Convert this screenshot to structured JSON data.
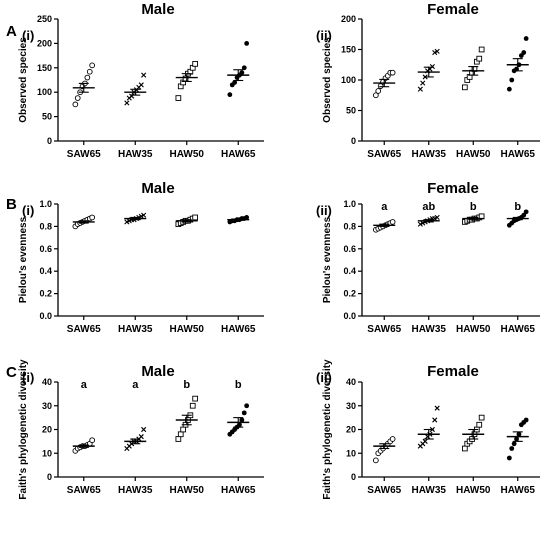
{
  "panel_letters": {
    "A": "A",
    "B": "B",
    "C": "C"
  },
  "chart_data": [
    {
      "type": "scatter",
      "panel": "A",
      "roman": "(i)",
      "title": "Male",
      "ylabel": "Observed species",
      "ylim": [
        0,
        250
      ],
      "yticks": [
        0,
        50,
        100,
        150,
        200,
        250
      ],
      "categories": [
        "SAW65",
        "HAW35",
        "HAW50",
        "HAW65"
      ],
      "markers": [
        "circle",
        "cross",
        "square",
        "dot"
      ],
      "points": [
        [
          75,
          88,
          100,
          112,
          118,
          130,
          142,
          155
        ],
        [
          78,
          88,
          92,
          100,
          105,
          110,
          115,
          135
        ],
        [
          88,
          112,
          120,
          128,
          138,
          142,
          150,
          158
        ],
        [
          95,
          115,
          120,
          130,
          135,
          140,
          150,
          200
        ]
      ],
      "means": [
        109,
        100,
        130,
        135
      ],
      "sem": [
        9,
        6,
        8,
        11
      ],
      "labels": []
    },
    {
      "type": "scatter",
      "panel": "A",
      "roman": "(ii)",
      "title": "Female",
      "ylabel": "Observed species",
      "ylim": [
        0,
        200
      ],
      "yticks": [
        0,
        50,
        100,
        150,
        200
      ],
      "categories": [
        "SAW65",
        "HAW35",
        "HAW50",
        "HAW65"
      ],
      "markers": [
        "circle",
        "cross",
        "square",
        "dot"
      ],
      "points": [
        [
          75,
          82,
          90,
          97,
          103,
          107,
          112,
          112
        ],
        [
          85,
          95,
          105,
          115,
          118,
          122,
          145,
          147
        ],
        [
          88,
          100,
          105,
          112,
          118,
          130,
          135,
          150
        ],
        [
          85,
          100,
          115,
          118,
          125,
          140,
          145,
          168
        ]
      ],
      "means": [
        95,
        113,
        115,
        125
      ],
      "sem": [
        6,
        8,
        7,
        10
      ],
      "labels": []
    },
    {
      "type": "scatter",
      "panel": "B",
      "roman": "(i)",
      "title": "Male",
      "ylabel": "Pielou's evenness",
      "ylim": [
        0,
        1.0
      ],
      "yticks": [
        0.0,
        0.2,
        0.4,
        0.6,
        0.8,
        1.0
      ],
      "categories": [
        "SAW65",
        "HAW35",
        "HAW50",
        "HAW65"
      ],
      "markers": [
        "circle",
        "cross",
        "square",
        "dot"
      ],
      "points": [
        [
          0.8,
          0.82,
          0.83,
          0.84,
          0.85,
          0.86,
          0.87,
          0.88
        ],
        [
          0.84,
          0.85,
          0.86,
          0.86,
          0.87,
          0.88,
          0.89,
          0.9
        ],
        [
          0.82,
          0.83,
          0.84,
          0.85,
          0.85,
          0.86,
          0.87,
          0.88
        ],
        [
          0.84,
          0.85,
          0.85,
          0.86,
          0.86,
          0.87,
          0.87,
          0.88
        ]
      ],
      "means": [
        0.84,
        0.87,
        0.85,
        0.86
      ],
      "sem": [
        0.01,
        0.01,
        0.01,
        0.005
      ],
      "labels": []
    },
    {
      "type": "scatter",
      "panel": "B",
      "roman": "(ii)",
      "title": "Female",
      "ylabel": "Pielou's evenness",
      "ylim": [
        0,
        1.0
      ],
      "yticks": [
        0.0,
        0.2,
        0.4,
        0.6,
        0.8,
        1.0
      ],
      "categories": [
        "SAW65",
        "HAW35",
        "HAW50",
        "HAW65"
      ],
      "markers": [
        "circle",
        "cross",
        "square",
        "dot"
      ],
      "points": [
        [
          0.77,
          0.78,
          0.79,
          0.8,
          0.81,
          0.82,
          0.83,
          0.84
        ],
        [
          0.82,
          0.83,
          0.84,
          0.85,
          0.86,
          0.87,
          0.87,
          0.88
        ],
        [
          0.84,
          0.85,
          0.86,
          0.86,
          0.87,
          0.87,
          0.88,
          0.89
        ],
        [
          0.81,
          0.83,
          0.85,
          0.86,
          0.87,
          0.88,
          0.9,
          0.93
        ]
      ],
      "means": [
        0.81,
        0.85,
        0.87,
        0.87
      ],
      "sem": [
        0.01,
        0.01,
        0.01,
        0.01
      ],
      "labels": [
        "a",
        "ab",
        "b",
        "b"
      ]
    },
    {
      "type": "scatter",
      "panel": "C",
      "roman": "(i)",
      "title": "Male",
      "ylabel": "Faith's phylogenetic diversity",
      "ylim": [
        0,
        40
      ],
      "yticks": [
        0,
        10,
        20,
        30,
        40
      ],
      "categories": [
        "SAW65",
        "HAW35",
        "HAW50",
        "HAW65"
      ],
      "markers": [
        "circle",
        "cross",
        "square",
        "dot"
      ],
      "points": [
        [
          11,
          12,
          12.5,
          13,
          13,
          13.5,
          14,
          15.5
        ],
        [
          12,
          13,
          14,
          15,
          15,
          16,
          17,
          20
        ],
        [
          16,
          18,
          20,
          22,
          24,
          26,
          30,
          33
        ],
        [
          18,
          19,
          20,
          21,
          22,
          24,
          27,
          30
        ]
      ],
      "means": [
        13,
        15,
        24,
        23
      ],
      "sem": [
        0.5,
        1,
        2,
        2
      ],
      "labels": [
        "a",
        "a",
        "b",
        "b"
      ]
    },
    {
      "type": "scatter",
      "panel": "C",
      "roman": "(ii)",
      "title": "Female",
      "ylabel": "Faith's phylogenetic diversity",
      "ylim": [
        0,
        40
      ],
      "yticks": [
        0,
        10,
        20,
        30,
        40
      ],
      "categories": [
        "SAW65",
        "HAW35",
        "HAW50",
        "HAW65"
      ],
      "markers": [
        "circle",
        "cross",
        "square",
        "dot"
      ],
      "points": [
        [
          7,
          10,
          11,
          12,
          13,
          14,
          15,
          16
        ],
        [
          13,
          14,
          15,
          17,
          18,
          20,
          24,
          29
        ],
        [
          12,
          14,
          15,
          16,
          18,
          20,
          22,
          25
        ],
        [
          8,
          12,
          14,
          16,
          18,
          22,
          23,
          24
        ]
      ],
      "means": [
        13,
        18,
        18,
        17
      ],
      "sem": [
        1,
        2,
        2,
        2
      ],
      "labels": []
    }
  ]
}
